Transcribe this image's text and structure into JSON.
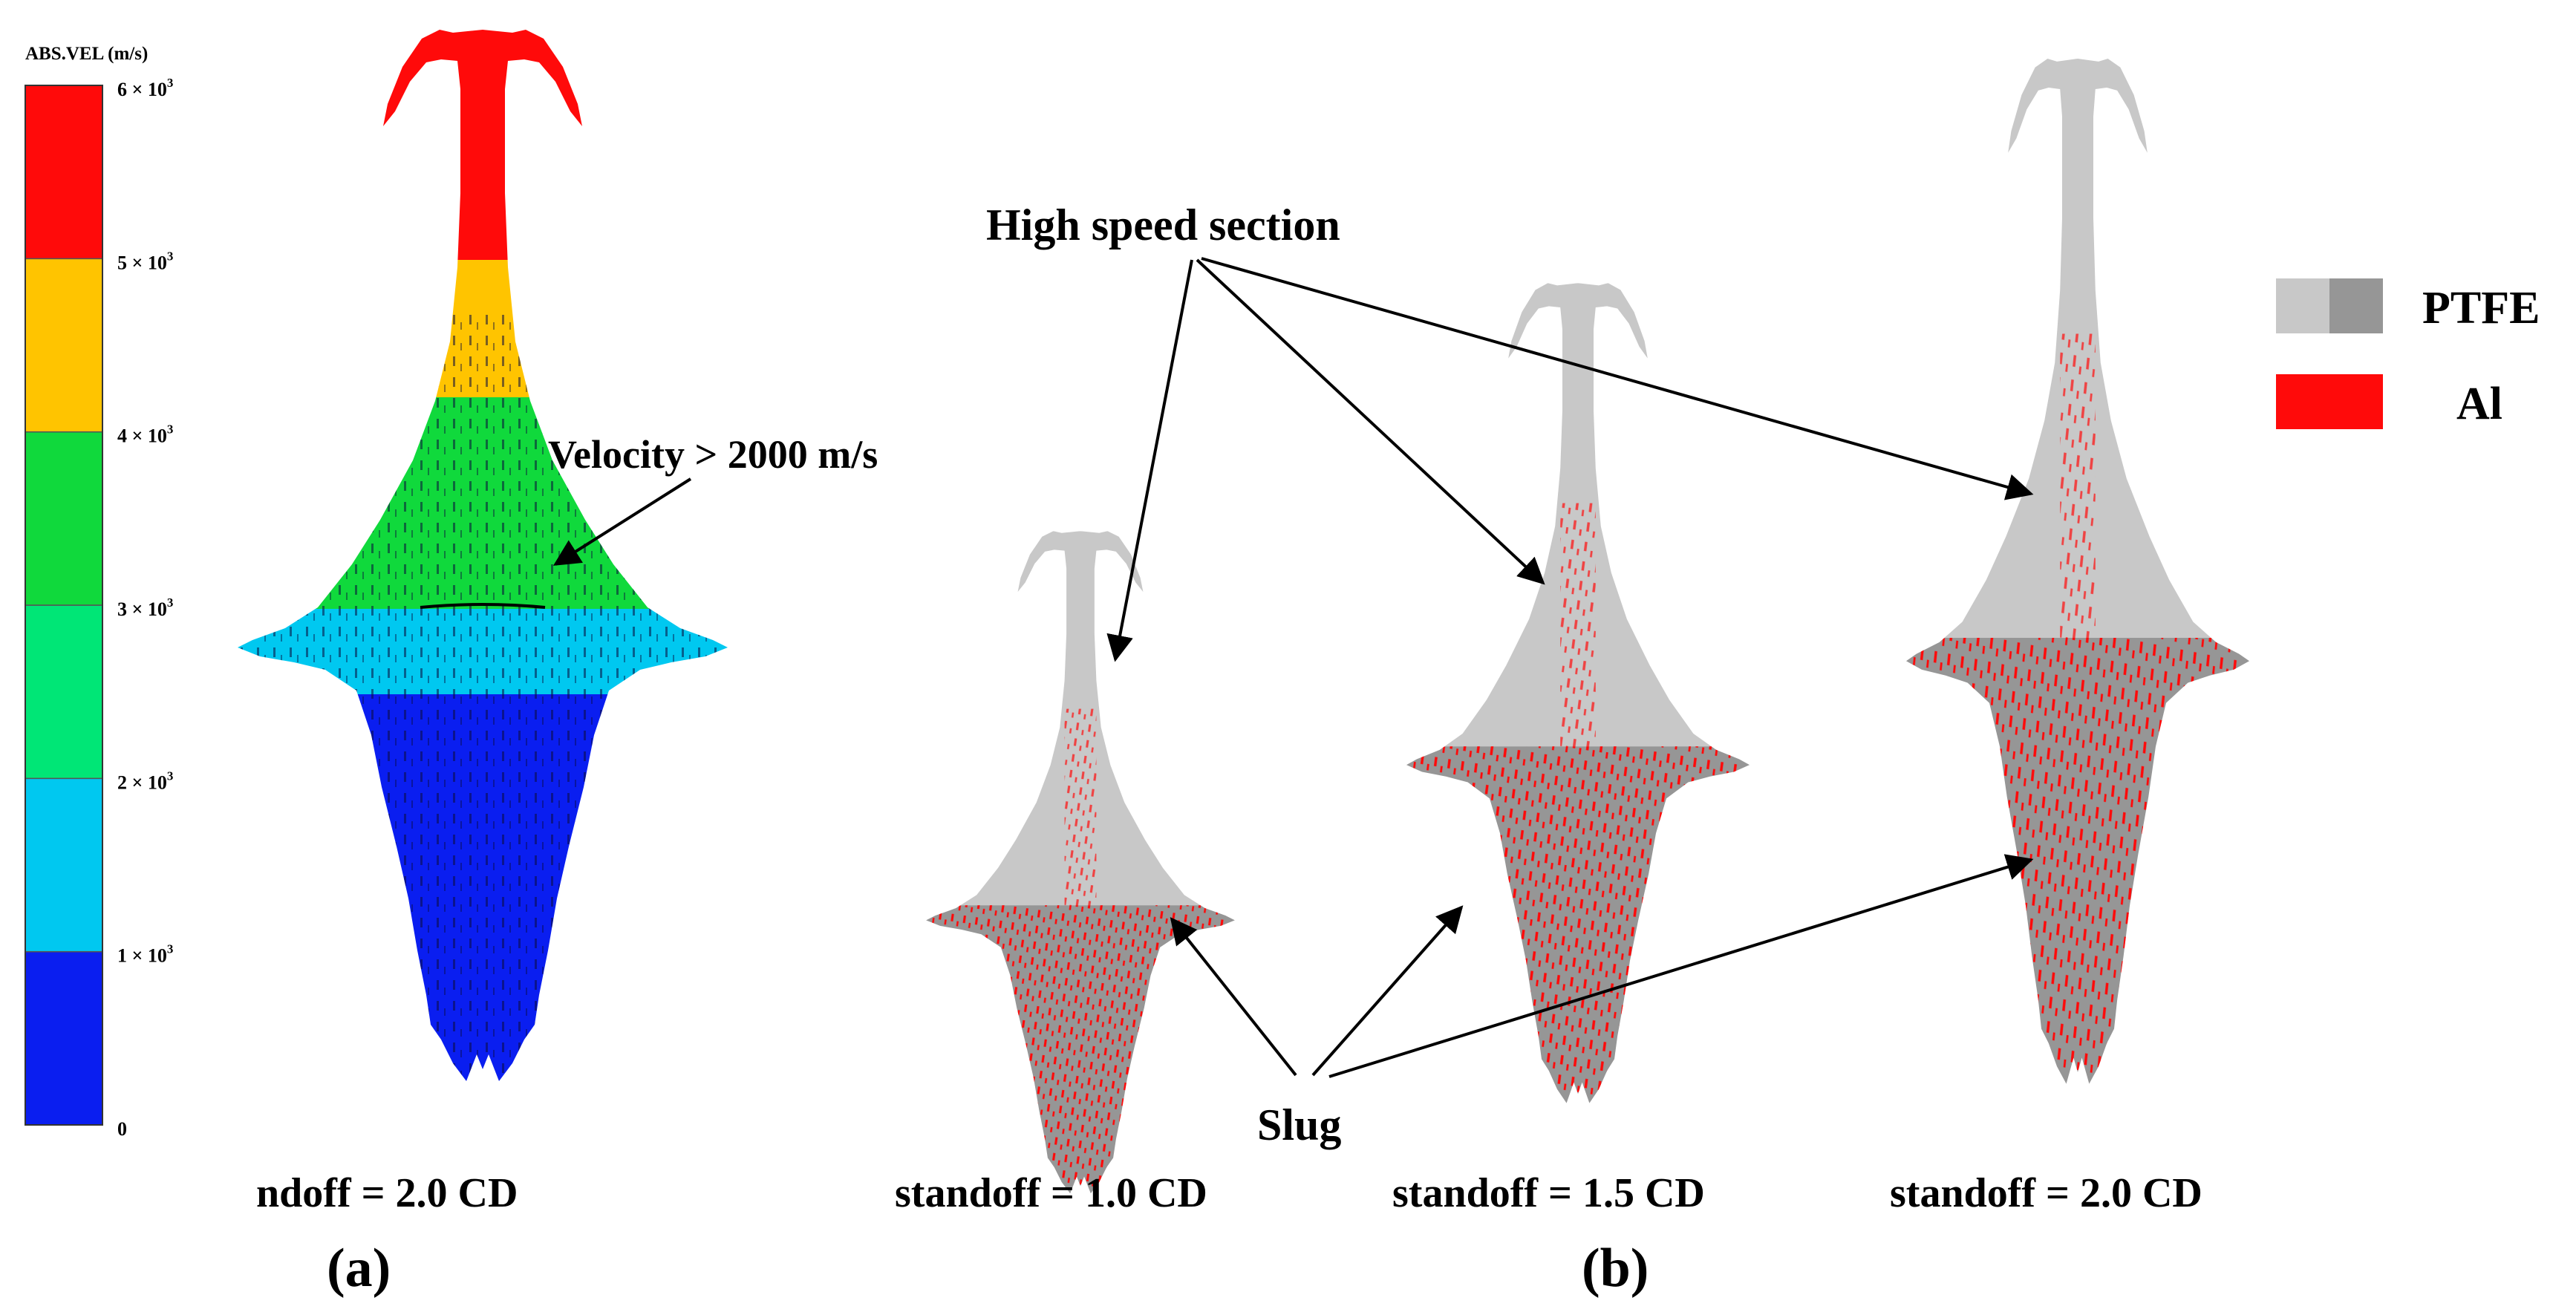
{
  "colorbar": {
    "title": "ABS.VEL (m/s)",
    "bands": [
      {
        "color": "#0a1ef0",
        "from": 0,
        "to": 1000
      },
      {
        "color": "#00c8f0",
        "from": 1000,
        "to": 2000
      },
      {
        "color": "#00e676",
        "from": 2000,
        "to": 3000
      },
      {
        "color": "#10d93c",
        "from": 3000,
        "to": 4000
      },
      {
        "color": "#ffc400",
        "from": 4000,
        "to": 5000
      },
      {
        "color": "#ff0a0a",
        "from": 5000,
        "to": 6000
      }
    ],
    "tick_labels": [
      {
        "mant": "6",
        "times": "×",
        "base": "10",
        "exp": "3"
      },
      {
        "mant": "5",
        "times": "×",
        "base": "10",
        "exp": "3"
      },
      {
        "mant": "4",
        "times": "×",
        "base": "10",
        "exp": "3"
      },
      {
        "mant": "3",
        "times": "×",
        "base": "10",
        "exp": "3"
      },
      {
        "mant": "2",
        "times": "×",
        "base": "10",
        "exp": "3"
      },
      {
        "mant": "1",
        "times": "×",
        "base": "10",
        "exp": "3"
      },
      {
        "mant": "0",
        "times": "",
        "base": "",
        "exp": ""
      }
    ]
  },
  "panel_a": {
    "annotation": "Velocity > 2000 m/s",
    "caption": "ndoff = 2.0 CD",
    "label": "(a)"
  },
  "panel_b": {
    "annotation_high_speed": "High speed section",
    "annotation_slug": "Slug",
    "captions": [
      "standoff = 1.0 CD",
      "standoff = 1.5 CD",
      "standoff = 2.0 CD"
    ],
    "label": "(b)"
  },
  "legend": {
    "items": [
      {
        "label": "PTFE",
        "colors": [
          "#c8c8c8",
          "#969696"
        ]
      },
      {
        "label": "Al",
        "colors": [
          "#ff0a0a"
        ]
      }
    ]
  },
  "colors": {
    "ptfe_light": "#c8c8c8",
    "ptfe_dark": "#969696",
    "al": "#ff0a0a",
    "bands": [
      "#0a1ef0",
      "#00c8f0",
      "#00e676",
      "#10d93c",
      "#ffc400",
      "#ff0a0a"
    ]
  }
}
